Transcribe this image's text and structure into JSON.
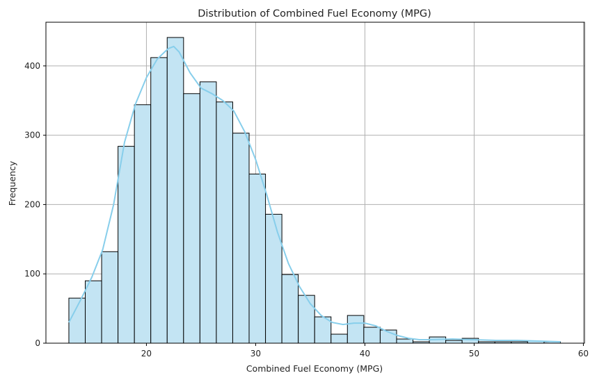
{
  "chart_data": {
    "type": "histogram",
    "title": "Distribution of Combined Fuel Economy (MPG)",
    "xlabel": "Combined Fuel Economy (MPG)",
    "ylabel": "Frequency",
    "xlim": [
      10.8,
      60.1
    ],
    "ylim": [
      0,
      463
    ],
    "xticks": [
      20,
      30,
      40,
      50,
      60
    ],
    "yticks": [
      0,
      100,
      200,
      300,
      400
    ],
    "grid": true,
    "bins": [
      {
        "x0": 12.9,
        "x1": 14.4,
        "count": 65
      },
      {
        "x0": 14.4,
        "x1": 15.9,
        "count": 90
      },
      {
        "x0": 15.9,
        "x1": 17.4,
        "count": 132
      },
      {
        "x0": 17.4,
        "x1": 18.9,
        "count": 284
      },
      {
        "x0": 18.9,
        "x1": 20.4,
        "count": 344
      },
      {
        "x0": 20.4,
        "x1": 21.9,
        "count": 412
      },
      {
        "x0": 21.9,
        "x1": 23.4,
        "count": 441
      },
      {
        "x0": 23.4,
        "x1": 24.9,
        "count": 360
      },
      {
        "x0": 24.9,
        "x1": 26.4,
        "count": 377
      },
      {
        "x0": 26.4,
        "x1": 27.9,
        "count": 348
      },
      {
        "x0": 27.9,
        "x1": 29.4,
        "count": 303
      },
      {
        "x0": 29.4,
        "x1": 30.9,
        "count": 244
      },
      {
        "x0": 30.9,
        "x1": 32.4,
        "count": 186
      },
      {
        "x0": 32.4,
        "x1": 33.9,
        "count": 99
      },
      {
        "x0": 33.9,
        "x1": 35.4,
        "count": 69
      },
      {
        "x0": 35.4,
        "x1": 36.9,
        "count": 38
      },
      {
        "x0": 36.9,
        "x1": 38.4,
        "count": 13
      },
      {
        "x0": 38.4,
        "x1": 39.9,
        "count": 40
      },
      {
        "x0": 39.9,
        "x1": 41.4,
        "count": 23
      },
      {
        "x0": 41.4,
        "x1": 42.9,
        "count": 19
      },
      {
        "x0": 42.9,
        "x1": 44.4,
        "count": 6
      },
      {
        "x0": 44.4,
        "x1": 45.9,
        "count": 2
      },
      {
        "x0": 45.9,
        "x1": 47.4,
        "count": 9
      },
      {
        "x0": 47.4,
        "x1": 48.9,
        "count": 4
      },
      {
        "x0": 48.9,
        "x1": 50.4,
        "count": 7
      },
      {
        "x0": 50.4,
        "x1": 51.9,
        "count": 2
      },
      {
        "x0": 51.9,
        "x1": 53.4,
        "count": 2
      },
      {
        "x0": 53.4,
        "x1": 54.9,
        "count": 2
      },
      {
        "x0": 54.9,
        "x1": 56.4,
        "count": 3
      },
      {
        "x0": 56.4,
        "x1": 57.9,
        "count": 2
      }
    ],
    "kde": {
      "x": [
        12.9,
        14,
        15,
        16,
        17,
        18,
        19,
        20,
        21,
        22,
        22.5,
        23,
        24,
        25,
        26,
        27,
        28,
        29,
        30,
        31,
        32,
        33,
        34,
        35,
        36,
        37,
        38,
        39,
        40,
        41,
        42,
        43,
        44,
        45,
        46,
        48,
        50,
        52,
        54,
        56,
        57.9
      ],
      "y": [
        30,
        63,
        95,
        135,
        200,
        290,
        345,
        383,
        410,
        425,
        428,
        420,
        390,
        368,
        360,
        350,
        335,
        305,
        265,
        215,
        160,
        115,
        82,
        57,
        40,
        30,
        27,
        29,
        29,
        25,
        17,
        11,
        7,
        5,
        5,
        6,
        5,
        4,
        4,
        3,
        2
      ]
    },
    "colors": {
      "bar_fill": "#c3e4f3",
      "bar_edge": "#000000",
      "kde_line": "#87ceeb",
      "grid": "#b0b0b0",
      "axes": "#000000"
    }
  }
}
